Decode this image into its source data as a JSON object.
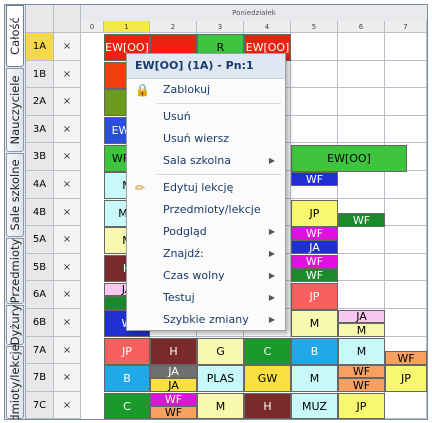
{
  "tabs": [
    "Całość",
    "Nauczyciele",
    "Sale szkolne",
    "Przedmioty",
    "Dyżury",
    "dmioty/lekcje"
  ],
  "day_header": "Poniedziałek",
  "periods": [
    "0",
    "1",
    "2",
    "3",
    "4",
    "5",
    "6",
    "7"
  ],
  "classes": [
    "1A",
    "1B",
    "2A",
    "3A",
    "3B",
    "4A",
    "4B",
    "5A",
    "5B",
    "6A",
    "6B",
    "7A",
    "7B",
    "7C"
  ],
  "x_mark": "×",
  "lessons": {
    "r0_p1": "EW[OO]",
    "r0_p3": "R",
    "r0_p4": "EW[OO]",
    "r3_p1": "EW[O",
    "r4_p1": "WF[O",
    "r4_p5": "EW[OO]",
    "r5_p1": "M",
    "r5_p5": "WF",
    "r6_p1": "MU",
    "r6_p5": "JP",
    "r6_p6": "WF",
    "r7_p1": "M",
    "r7_p5a": "WF",
    "r7_p5b": "JA",
    "r8_p1": "H",
    "r8_p5a": "WF",
    "r8_p5b": "WF",
    "r9_p1": "JA",
    "r9_p5": "JP",
    "r10_p1": "W",
    "r10_p5": "M",
    "r10_p6a": "JA",
    "r10_p6b": "M",
    "r11_p1": "JP",
    "r11_p2": "H",
    "r11_p3": "G",
    "r11_p4": "C",
    "r11_p5": "B",
    "r11_p6": "M",
    "r11_p7": "WF",
    "r12_p1": "B",
    "r12_p2a": "JA",
    "r12_p2b": "JA",
    "r12_p3": "PLAS",
    "r12_p4": "GW",
    "r12_p5": "M",
    "r12_p6a": "WF",
    "r12_p6b": "WF",
    "r12_p7": "JP",
    "r13_p1": "C",
    "r13_p2a": "WF",
    "r13_p2b": "WF",
    "r13_p3": "M",
    "r13_p4": "H",
    "r13_p5": "MUZ",
    "r13_p6": "JP"
  },
  "menu": {
    "header": "EW[OO] (1A) - Pn:1",
    "items": {
      "lock": "Zablokuj",
      "delete": "Usuń",
      "delete_row": "Usuń wiersz",
      "room": "Sala szkolna",
      "edit": "Edytuj lekcję",
      "subjects": "Przedmioty/lekcje",
      "preview": "Podgląd",
      "find": "Znajdź:",
      "free_time": "Czas wolny",
      "test": "Testuj",
      "quick_changes": "Szybkie zmiany"
    },
    "arrow": "▶"
  }
}
